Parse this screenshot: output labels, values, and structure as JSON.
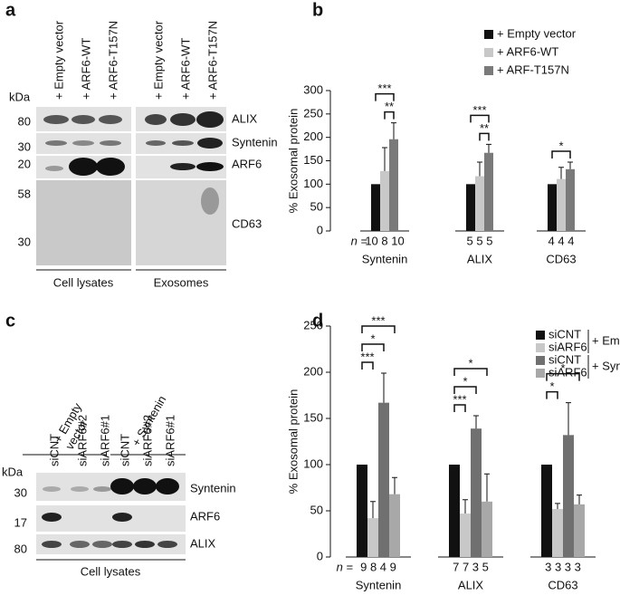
{
  "panels": {
    "a": "a",
    "b": "b",
    "c": "c",
    "d": "d"
  },
  "blot_a": {
    "lanes": [
      "+ Empty vector",
      "+ ARF6-WT",
      "+ ARF6-T157N",
      "+ Empty vector",
      "+ ARF6-WT",
      "+ ARF6-T157N"
    ],
    "unit": "kDa",
    "markers": [
      "80",
      "30",
      "20",
      "58",
      "30"
    ],
    "proteins": [
      "ALIX",
      "Syntenin",
      "ARF6",
      "CD63"
    ],
    "captions": [
      "Cell lysates",
      "Exosomes"
    ]
  },
  "blot_c": {
    "groups": [
      "+ Empty\nvector",
      "+ Syntenin"
    ],
    "lanes": [
      "siCNT",
      "siARF6#2",
      "siARF6#1",
      "siCNT",
      "siARF6#2",
      "siARF6#1"
    ],
    "unit": "kDa",
    "markers": [
      "30",
      "17",
      "80"
    ],
    "proteins": [
      "Syntenin",
      "ARF6",
      "ALIX"
    ],
    "caption": "Cell lysates"
  },
  "chart_data": [
    {
      "type": "bar",
      "y_label": "% Exosomal protein",
      "ylim": [
        0,
        300
      ],
      "yticks": [
        0,
        50,
        100,
        150,
        200,
        250,
        300
      ],
      "categories": [
        "Syntenin",
        "ALIX",
        "CD63"
      ],
      "n_label": "n =",
      "n": [
        "10 8 10",
        "5 5 5",
        "4 4 4"
      ],
      "series": [
        {
          "name": "+ Empty vector",
          "color": "#111111",
          "values": [
            100,
            100,
            100
          ],
          "errors": [
            null,
            null,
            null
          ]
        },
        {
          "name": "+ ARF6-WT",
          "color": "#c8c8c8",
          "values": [
            128,
            117,
            111
          ],
          "errors": [
            50,
            30,
            25
          ]
        },
        {
          "name": "+ ARF-T157N",
          "color": "#7a7a7a",
          "values": [
            196,
            167,
            132
          ],
          "errors": [
            35,
            18,
            15
          ]
        }
      ],
      "significance": [
        {
          "category": 0,
          "from": 1,
          "to": 2,
          "text": "**"
        },
        {
          "category": 0,
          "from": 0,
          "to": 2,
          "text": "***"
        },
        {
          "category": 1,
          "from": 1,
          "to": 2,
          "text": "**"
        },
        {
          "category": 1,
          "from": 0,
          "to": 2,
          "text": "***"
        },
        {
          "category": 2,
          "from": 0,
          "to": 2,
          "text": "*"
        }
      ]
    },
    {
      "type": "bar",
      "y_label": "% Exosomal protein",
      "ylim": [
        0,
        250
      ],
      "yticks": [
        0,
        50,
        100,
        150,
        200,
        250
      ],
      "categories": [
        "Syntenin",
        "ALIX",
        "CD63"
      ],
      "n_label": "n =",
      "n": [
        "9 8 4 9",
        "7 7 3 5",
        "3 3 3 3"
      ],
      "series": [
        {
          "name": "siCNT",
          "color": "#111111",
          "values": [
            100,
            100,
            100
          ],
          "errors": [
            null,
            null,
            null
          ]
        },
        {
          "name": "siARF6",
          "color": "#c8c8c8",
          "values": [
            42,
            47,
            52
          ],
          "errors": [
            18,
            15,
            6
          ]
        },
        {
          "name": "siCNT",
          "color": "#707070",
          "values": [
            167,
            139,
            132
          ],
          "errors": [
            32,
            14,
            35
          ]
        },
        {
          "name": "siARF6",
          "color": "#a8a8a8",
          "values": [
            68,
            60,
            57
          ],
          "errors": [
            18,
            30,
            10
          ]
        }
      ],
      "legend_groups": [
        {
          "label": "+ Empty vector",
          "series": [
            0,
            1
          ]
        },
        {
          "label": "+ Syntenin",
          "series": [
            2,
            3
          ]
        }
      ],
      "significance": [
        {
          "category": 0,
          "from": 0,
          "to": 1,
          "text": "***"
        },
        {
          "category": 0,
          "from": 0,
          "to": 2,
          "text": "*"
        },
        {
          "category": 0,
          "from": 0,
          "to": 3,
          "text": "***"
        },
        {
          "category": 1,
          "from": 0,
          "to": 1,
          "text": "***"
        },
        {
          "category": 1,
          "from": 0,
          "to": 2,
          "text": "*"
        },
        {
          "category": 1,
          "from": 0,
          "to": 3,
          "text": "*"
        },
        {
          "category": 2,
          "from": 0,
          "to": 1,
          "text": "*"
        },
        {
          "category": 2,
          "from": 0,
          "to": 3,
          "text": "*"
        }
      ]
    }
  ]
}
